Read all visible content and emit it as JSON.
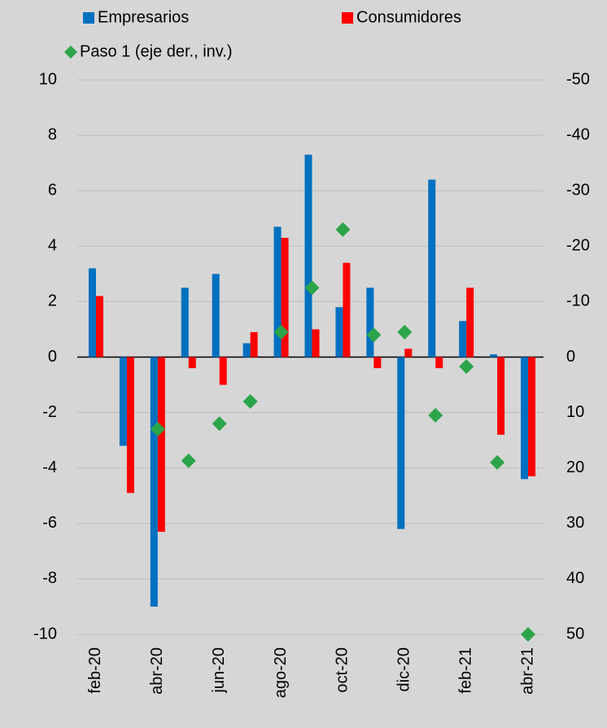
{
  "chart_data": {
    "type": "bar",
    "categories": [
      "feb-20",
      null,
      "abr-20",
      null,
      "jun-20",
      null,
      "ago-20",
      null,
      "oct-20",
      null,
      "dic-20",
      null,
      "feb-21",
      null,
      "abr-21"
    ],
    "series": [
      {
        "name": "Empresarios",
        "type": "bar",
        "color": "#0070c0",
        "values": [
          3.2,
          -3.2,
          -9.0,
          2.5,
          3.0,
          0.5,
          4.7,
          7.3,
          1.8,
          2.5,
          -6.2,
          6.4,
          1.3,
          0.1,
          -4.4
        ]
      },
      {
        "name": "Consumidores",
        "type": "bar",
        "color": "#ff0000",
        "values": [
          2.2,
          -4.9,
          -6.3,
          -0.4,
          -1.0,
          0.9,
          4.3,
          1.0,
          3.4,
          -0.4,
          0.3,
          -0.4,
          2.5,
          -2.8,
          -4.3
        ]
      },
      {
        "name": "Paso 1 (eje der., inv.)",
        "type": "scatter",
        "axis": "y2",
        "color": "#2ca54a",
        "values": [
          null,
          null,
          13,
          18.7,
          12,
          8,
          -4.5,
          -12.5,
          -23,
          -4,
          -4.5,
          10.5,
          1.7,
          19,
          50
        ]
      }
    ],
    "ylim": [
      -10,
      10
    ],
    "yticks": [
      -10,
      -8,
      -6,
      -4,
      -2,
      0,
      2,
      4,
      6,
      8,
      10
    ],
    "y2lim": [
      50,
      -50
    ],
    "y2ticks": [
      50,
      40,
      30,
      20,
      10,
      0,
      -10,
      -20,
      -30,
      -40,
      -50
    ],
    "grid": true
  }
}
